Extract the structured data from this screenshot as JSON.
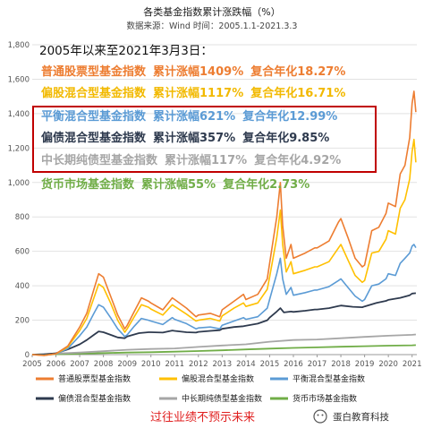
{
  "chart_data": {
    "type": "line",
    "title": "各类基金指数累计涨跌幅（%）",
    "subtitle": "数据来源：Wind 时间：2005.1.1-2021.3.3",
    "xlabel": "",
    "ylabel": "",
    "x_ticks": [
      "2005",
      "2006",
      "2007",
      "2008",
      "2009",
      "2010",
      "2011",
      "2012",
      "2013",
      "2014",
      "2015",
      "2016",
      "2017",
      "2018",
      "2019",
      "2020",
      "2021"
    ],
    "y_ticks": [
      "0",
      "200",
      "400",
      "600",
      "800",
      "1,000",
      "1,200",
      "1,400",
      "1,600",
      "1,800"
    ],
    "xlim": [
      2005,
      2021.2
    ],
    "ylim": [
      0,
      1800
    ],
    "grid": true,
    "legend_position": "bottom",
    "series": [
      {
        "name": "普通股票型基金指数",
        "color": "#ED7D31",
        "points": [
          [
            2005,
            0
          ],
          [
            2005.5,
            -5
          ],
          [
            2006,
            5
          ],
          [
            2006.5,
            50
          ],
          [
            2007,
            160
          ],
          [
            2007.3,
            240
          ],
          [
            2007.6,
            380
          ],
          [
            2007.8,
            470
          ],
          [
            2008,
            450
          ],
          [
            2008.3,
            340
          ],
          [
            2008.6,
            230
          ],
          [
            2008.9,
            150
          ],
          [
            2009,
            170
          ],
          [
            2009.3,
            250
          ],
          [
            2009.6,
            330
          ],
          [
            2009.9,
            310
          ],
          [
            2010,
            300
          ],
          [
            2010.5,
            260
          ],
          [
            2010.9,
            330
          ],
          [
            2011,
            320
          ],
          [
            2011.5,
            270
          ],
          [
            2011.9,
            220
          ],
          [
            2012,
            230
          ],
          [
            2012.5,
            240
          ],
          [
            2012.9,
            220
          ],
          [
            2013,
            260
          ],
          [
            2013.5,
            310
          ],
          [
            2013.9,
            350
          ],
          [
            2014,
            320
          ],
          [
            2014.5,
            350
          ],
          [
            2014.9,
            440
          ],
          [
            2015,
            530
          ],
          [
            2015.3,
            800
          ],
          [
            2015.45,
            1000
          ],
          [
            2015.55,
            750
          ],
          [
            2015.7,
            560
          ],
          [
            2015.9,
            640
          ],
          [
            2016,
            560
          ],
          [
            2016.5,
            590
          ],
          [
            2016.9,
            620
          ],
          [
            2017,
            620
          ],
          [
            2017.5,
            660
          ],
          [
            2017.9,
            770
          ],
          [
            2018,
            790
          ],
          [
            2018.3,
            680
          ],
          [
            2018.6,
            560
          ],
          [
            2018.9,
            510
          ],
          [
            2019,
            520
          ],
          [
            2019.3,
            720
          ],
          [
            2019.6,
            740
          ],
          [
            2019.9,
            820
          ],
          [
            2020,
            880
          ],
          [
            2020.3,
            860
          ],
          [
            2020.5,
            1050
          ],
          [
            2020.7,
            1100
          ],
          [
            2020.9,
            1260
          ],
          [
            2021,
            1460
          ],
          [
            2021.08,
            1530
          ],
          [
            2021.16,
            1409
          ]
        ]
      },
      {
        "name": "偏股混合型基金指数",
        "color": "#FFC000",
        "points": [
          [
            2005,
            0
          ],
          [
            2005.5,
            -4
          ],
          [
            2006,
            4
          ],
          [
            2006.5,
            45
          ],
          [
            2007,
            140
          ],
          [
            2007.3,
            210
          ],
          [
            2007.6,
            330
          ],
          [
            2007.8,
            410
          ],
          [
            2008,
            390
          ],
          [
            2008.3,
            300
          ],
          [
            2008.6,
            200
          ],
          [
            2008.9,
            130
          ],
          [
            2009,
            150
          ],
          [
            2009.3,
            220
          ],
          [
            2009.6,
            290
          ],
          [
            2009.9,
            275
          ],
          [
            2010,
            265
          ],
          [
            2010.5,
            230
          ],
          [
            2010.9,
            290
          ],
          [
            2011,
            280
          ],
          [
            2011.5,
            235
          ],
          [
            2011.9,
            195
          ],
          [
            2012,
            200
          ],
          [
            2012.5,
            210
          ],
          [
            2012.9,
            195
          ],
          [
            2013,
            225
          ],
          [
            2013.5,
            270
          ],
          [
            2013.9,
            300
          ],
          [
            2014,
            280
          ],
          [
            2014.5,
            300
          ],
          [
            2014.9,
            380
          ],
          [
            2015,
            450
          ],
          [
            2015.3,
            680
          ],
          [
            2015.45,
            840
          ],
          [
            2015.55,
            640
          ],
          [
            2015.7,
            480
          ],
          [
            2015.9,
            540
          ],
          [
            2016,
            470
          ],
          [
            2016.5,
            490
          ],
          [
            2016.9,
            510
          ],
          [
            2017,
            510
          ],
          [
            2017.5,
            540
          ],
          [
            2017.9,
            620
          ],
          [
            2018,
            640
          ],
          [
            2018.3,
            550
          ],
          [
            2018.6,
            460
          ],
          [
            2018.9,
            420
          ],
          [
            2019,
            430
          ],
          [
            2019.3,
            590
          ],
          [
            2019.6,
            600
          ],
          [
            2019.9,
            670
          ],
          [
            2020,
            720
          ],
          [
            2020.3,
            700
          ],
          [
            2020.5,
            850
          ],
          [
            2020.7,
            900
          ],
          [
            2020.9,
            1020
          ],
          [
            2021,
            1180
          ],
          [
            2021.08,
            1250
          ],
          [
            2021.16,
            1117
          ]
        ]
      },
      {
        "name": "平衡混合型基金指数",
        "color": "#5B9BD5",
        "points": [
          [
            2005,
            0
          ],
          [
            2005.5,
            -3
          ],
          [
            2006,
            3
          ],
          [
            2006.5,
            35
          ],
          [
            2007,
            110
          ],
          [
            2007.3,
            160
          ],
          [
            2007.6,
            240
          ],
          [
            2007.8,
            290
          ],
          [
            2008,
            275
          ],
          [
            2008.3,
            215
          ],
          [
            2008.6,
            150
          ],
          [
            2008.9,
            105
          ],
          [
            2009,
            115
          ],
          [
            2009.3,
            165
          ],
          [
            2009.6,
            210
          ],
          [
            2009.9,
            200
          ],
          [
            2010,
            195
          ],
          [
            2010.5,
            175
          ],
          [
            2010.9,
            215
          ],
          [
            2011,
            205
          ],
          [
            2011.5,
            180
          ],
          [
            2011.9,
            150
          ],
          [
            2012,
            155
          ],
          [
            2012.5,
            160
          ],
          [
            2012.9,
            150
          ],
          [
            2013,
            170
          ],
          [
            2013.5,
            195
          ],
          [
            2013.9,
            215
          ],
          [
            2014,
            205
          ],
          [
            2014.5,
            220
          ],
          [
            2014.9,
            270
          ],
          [
            2015,
            320
          ],
          [
            2015.3,
            470
          ],
          [
            2015.45,
            560
          ],
          [
            2015.55,
            440
          ],
          [
            2015.7,
            350
          ],
          [
            2015.9,
            390
          ],
          [
            2016,
            345
          ],
          [
            2016.5,
            360
          ],
          [
            2016.9,
            375
          ],
          [
            2017,
            375
          ],
          [
            2017.5,
            395
          ],
          [
            2017.9,
            430
          ],
          [
            2018,
            440
          ],
          [
            2018.3,
            390
          ],
          [
            2018.6,
            340
          ],
          [
            2018.9,
            310
          ],
          [
            2019,
            320
          ],
          [
            2019.3,
            400
          ],
          [
            2019.6,
            410
          ],
          [
            2019.9,
            440
          ],
          [
            2020,
            470
          ],
          [
            2020.3,
            460
          ],
          [
            2020.5,
            530
          ],
          [
            2020.7,
            560
          ],
          [
            2020.9,
            590
          ],
          [
            2021,
            630
          ],
          [
            2021.08,
            640
          ],
          [
            2021.16,
            621
          ]
        ]
      },
      {
        "name": "偏债混合型基金指数",
        "color": "#2E3A4E",
        "points": [
          [
            2005,
            0
          ],
          [
            2005.5,
            2
          ],
          [
            2006,
            8
          ],
          [
            2006.5,
            30
          ],
          [
            2007,
            60
          ],
          [
            2007.3,
            85
          ],
          [
            2007.6,
            115
          ],
          [
            2007.8,
            135
          ],
          [
            2008,
            130
          ],
          [
            2008.3,
            115
          ],
          [
            2008.6,
            100
          ],
          [
            2008.9,
            95
          ],
          [
            2009,
            105
          ],
          [
            2009.5,
            125
          ],
          [
            2009.9,
            130
          ],
          [
            2010,
            130
          ],
          [
            2010.5,
            128
          ],
          [
            2010.9,
            140
          ],
          [
            2011,
            138
          ],
          [
            2011.5,
            130
          ],
          [
            2011.9,
            128
          ],
          [
            2012,
            132
          ],
          [
            2012.5,
            138
          ],
          [
            2012.9,
            142
          ],
          [
            2013,
            150
          ],
          [
            2013.5,
            160
          ],
          [
            2013.9,
            165
          ],
          [
            2014,
            168
          ],
          [
            2014.5,
            180
          ],
          [
            2014.9,
            200
          ],
          [
            2015,
            215
          ],
          [
            2015.3,
            250
          ],
          [
            2015.45,
            270
          ],
          [
            2015.6,
            245
          ],
          [
            2015.9,
            250
          ],
          [
            2016,
            248
          ],
          [
            2016.5,
            255
          ],
          [
            2016.9,
            262
          ],
          [
            2017,
            262
          ],
          [
            2017.5,
            270
          ],
          [
            2017.9,
            282
          ],
          [
            2018,
            285
          ],
          [
            2018.5,
            278
          ],
          [
            2018.9,
            275
          ],
          [
            2019,
            280
          ],
          [
            2019.5,
            300
          ],
          [
            2019.9,
            312
          ],
          [
            2020,
            318
          ],
          [
            2020.5,
            330
          ],
          [
            2020.9,
            345
          ],
          [
            2021,
            355
          ],
          [
            2021.16,
            357
          ]
        ]
      },
      {
        "name": "中长期纯债型基金指数",
        "color": "#A6A6A6",
        "points": [
          [
            2005,
            0
          ],
          [
            2006,
            6
          ],
          [
            2007,
            12
          ],
          [
            2008,
            20
          ],
          [
            2009,
            28
          ],
          [
            2010,
            33
          ],
          [
            2011,
            36
          ],
          [
            2012,
            45
          ],
          [
            2013,
            53
          ],
          [
            2014,
            60
          ],
          [
            2015,
            75
          ],
          [
            2016,
            85
          ],
          [
            2017,
            88
          ],
          [
            2018,
            95
          ],
          [
            2019,
            103
          ],
          [
            2020,
            110
          ],
          [
            2021,
            115
          ],
          [
            2021.16,
            117
          ]
        ]
      },
      {
        "name": "货币市场基金指数",
        "color": "#70AD47",
        "points": [
          [
            2005,
            0
          ],
          [
            2006,
            2
          ],
          [
            2007,
            5
          ],
          [
            2008,
            9
          ],
          [
            2009,
            12
          ],
          [
            2010,
            14
          ],
          [
            2011,
            17
          ],
          [
            2012,
            21
          ],
          [
            2013,
            25
          ],
          [
            2014,
            30
          ],
          [
            2015,
            35
          ],
          [
            2016,
            39
          ],
          [
            2017,
            42
          ],
          [
            2018,
            46
          ],
          [
            2019,
            49
          ],
          [
            2020,
            52
          ],
          [
            2021,
            54
          ],
          [
            2021.16,
            55
          ]
        ]
      }
    ]
  },
  "annotation": {
    "heading": "2005年以来至2021年3月3日：",
    "lines": [
      {
        "fund": "普通股票型基金指数",
        "cum": "累计涨幅1409%",
        "ann": "复合年化18.27%",
        "color": "#ED7D31"
      },
      {
        "fund": "偏股混合型基金指数",
        "cum": "累计涨幅1117%",
        "ann": "复合年化16.71%",
        "color": "#F2B900"
      },
      {
        "fund": "平衡混合型基金指数",
        "cum": "累计涨幅621%",
        "ann": "复合年化12.99%",
        "color": "#5B9BD5"
      },
      {
        "fund": "偏债混合型基金指数",
        "cum": "累计涨幅357%",
        "ann": "复合年化9.85%",
        "color": "#2E3A4E"
      },
      {
        "fund": "中长期纯债型基金指数",
        "cum": "累计涨幅117%",
        "ann": "复合年化4.92%",
        "color": "#A6A6A6"
      },
      {
        "fund": "货币市场基金指数",
        "cum": "累计涨幅55%",
        "ann": "复合年化2.73%",
        "color": "#70AD47"
      }
    ]
  },
  "highlight_box_color": "#C00000",
  "footer_text": "过往业绩不预示未来",
  "footer_color": "#E02020",
  "watermark_text": "蛋白教育科技"
}
